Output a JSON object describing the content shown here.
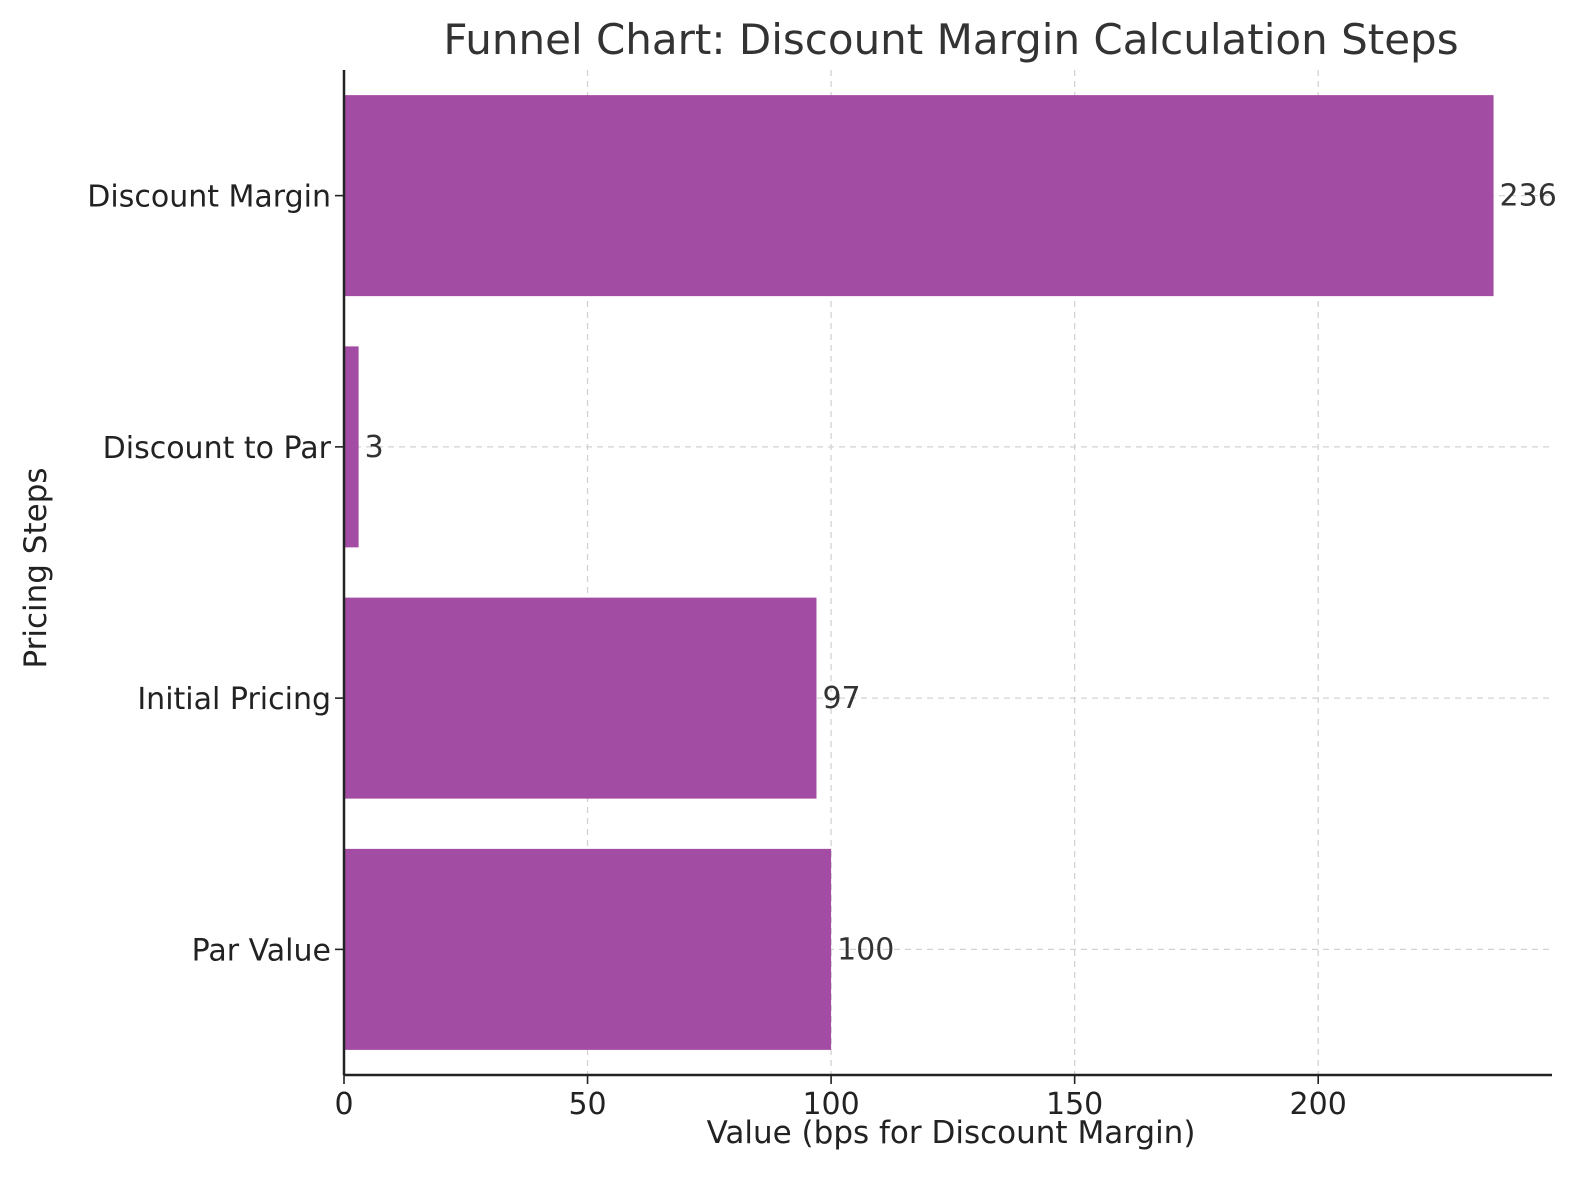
{
  "chart_data": {
    "type": "bar",
    "orientation": "horizontal",
    "title": "Funnel Chart: Discount Margin Calculation Steps",
    "xlabel": "Value (bps for Discount Margin)",
    "ylabel": "Pricing Steps",
    "categories": [
      "Par Value",
      "Initial Pricing",
      "Discount to Par",
      "Discount Margin"
    ],
    "values": [
      100,
      97,
      3,
      236
    ],
    "data_labels": [
      "100",
      "97",
      "3",
      "236"
    ],
    "xlim": [
      0,
      248
    ],
    "xticks": [
      0,
      50,
      100,
      150,
      200
    ],
    "xtick_labels": [
      "0",
      "50",
      "100",
      "150",
      "200"
    ],
    "bar_color": "#a34ca4",
    "grid": true
  }
}
